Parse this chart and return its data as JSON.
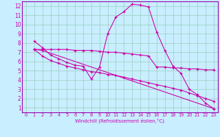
{
  "xlabel": "Windchill (Refroidissement éolien,°C)",
  "background_color": "#c8eeff",
  "grid_color": "#99ccbb",
  "line_color": "#cc00aa",
  "spine_color": "#9900aa",
  "xlim": [
    -0.5,
    23.5
  ],
  "ylim": [
    0.5,
    12.5
  ],
  "xticks": [
    0,
    1,
    2,
    3,
    4,
    5,
    6,
    7,
    8,
    9,
    10,
    11,
    12,
    13,
    14,
    15,
    16,
    17,
    18,
    19,
    20,
    21,
    22,
    23
  ],
  "yticks": [
    1,
    2,
    3,
    4,
    5,
    6,
    7,
    8,
    9,
    10,
    11,
    12
  ],
  "line1_x": [
    1,
    2,
    3,
    4,
    5,
    6,
    7,
    8,
    9,
    10,
    11,
    12,
    13,
    14,
    15,
    16,
    17,
    18,
    19,
    20,
    21,
    22,
    23
  ],
  "line1_y": [
    8.2,
    7.5,
    6.7,
    6.3,
    5.9,
    5.6,
    5.5,
    4.1,
    5.4,
    9.0,
    10.8,
    11.4,
    12.2,
    12.1,
    11.9,
    9.2,
    7.2,
    5.5,
    4.7,
    3.0,
    2.4,
    1.5,
    0.9
  ],
  "line2_x": [
    1,
    2,
    3,
    4,
    5,
    6,
    7,
    8,
    9,
    10,
    11,
    12,
    13,
    14,
    15,
    16,
    17,
    18,
    19,
    20,
    21,
    22,
    23
  ],
  "line2_y": [
    7.3,
    6.6,
    6.1,
    5.8,
    5.5,
    5.3,
    5.1,
    4.9,
    4.8,
    4.6,
    4.5,
    4.3,
    4.1,
    3.9,
    3.7,
    3.5,
    3.3,
    3.1,
    2.9,
    2.6,
    2.3,
    2.0,
    1.7
  ],
  "line3_x": [
    1,
    2,
    3,
    4,
    5,
    6,
    7,
    8,
    9,
    10,
    11,
    12,
    13,
    14,
    15,
    16,
    17,
    18,
    19,
    20,
    21,
    22,
    23
  ],
  "line3_y": [
    7.3,
    7.3,
    7.3,
    7.3,
    7.3,
    7.2,
    7.2,
    7.2,
    7.1,
    7.0,
    7.0,
    6.9,
    6.8,
    6.7,
    6.6,
    5.4,
    5.4,
    5.3,
    5.3,
    5.2,
    5.2,
    5.1,
    5.1
  ],
  "line4_x": [
    1,
    2,
    23
  ],
  "line4_y": [
    7.3,
    7.2,
    0.9
  ]
}
